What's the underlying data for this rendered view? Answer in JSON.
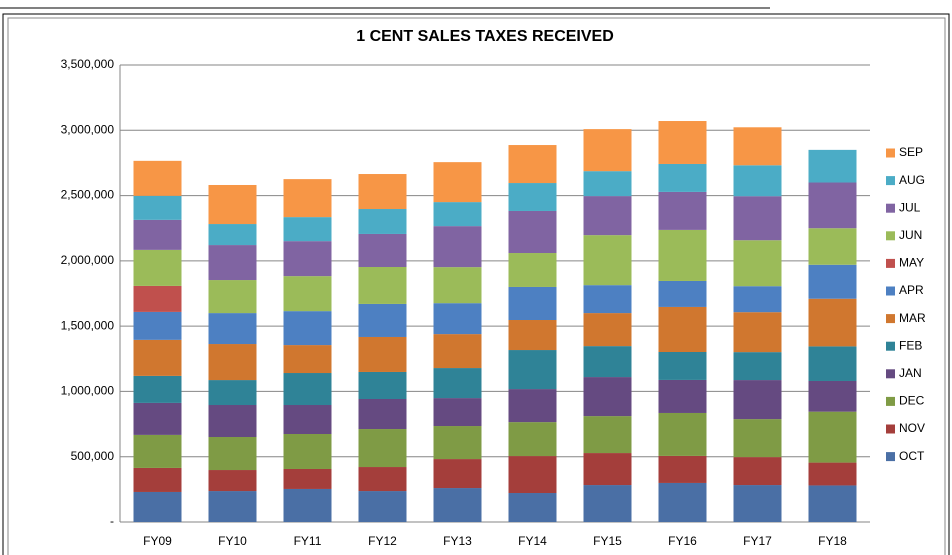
{
  "chart_data": {
    "type": "stacked_bar",
    "title": "1 CENT SALES TAXES RECEIVED",
    "categories": [
      "FY09",
      "FY10",
      "FY11",
      "FY12",
      "FY13",
      "FY14",
      "FY15",
      "FY16",
      "FY17",
      "FY18"
    ],
    "series": [
      {
        "name": "OCT",
        "color": "#4a6fa5",
        "values": [
          230000,
          237000,
          253000,
          237000,
          260000,
          222000,
          283000,
          299000,
          283000,
          280000
        ]
      },
      {
        "name": "NOV",
        "color": "#a43e3b",
        "values": [
          184000,
          161000,
          153000,
          184000,
          222000,
          283000,
          245000,
          207000,
          214000,
          175000
        ]
      },
      {
        "name": "DEC",
        "color": "#7f9b45",
        "values": [
          253000,
          253000,
          268000,
          291000,
          253000,
          260000,
          283000,
          329000,
          291000,
          390000
        ]
      },
      {
        "name": "JAN",
        "color": "#654a81",
        "values": [
          245000,
          245000,
          222000,
          230000,
          214000,
          253000,
          299000,
          253000,
          299000,
          235000
        ]
      },
      {
        "name": "FEB",
        "color": "#2f8397",
        "values": [
          207000,
          191000,
          245000,
          207000,
          230000,
          299000,
          237000,
          214000,
          214000,
          265000
        ]
      },
      {
        "name": "MAR",
        "color": "#d0772f",
        "values": [
          276000,
          276000,
          214000,
          268000,
          260000,
          230000,
          253000,
          345000,
          306000,
          365000
        ]
      },
      {
        "name": "APR",
        "color": "#4d80c2",
        "values": [
          214000,
          237000,
          260000,
          253000,
          237000,
          253000,
          214000,
          199000,
          199000,
          260000
        ]
      },
      {
        "name": "MAY",
        "color": "#c0504d",
        "values": [
          199000,
          null,
          null,
          null,
          null,
          null,
          null,
          null,
          null,
          null
        ]
      },
      {
        "name": "JUN",
        "color": "#9bbb59",
        "values": [
          276000,
          253000,
          268000,
          283000,
          276000,
          260000,
          383000,
          391000,
          352000,
          280000
        ]
      },
      {
        "name": "JUL",
        "color": "#8064a2",
        "values": [
          230000,
          268000,
          268000,
          253000,
          314000,
          322000,
          299000,
          291000,
          337000,
          350000
        ]
      },
      {
        "name": "AUG",
        "color": "#4bacc6",
        "values": [
          184000,
          161000,
          184000,
          191000,
          184000,
          214000,
          191000,
          214000,
          237000,
          250000
        ]
      },
      {
        "name": "SEP",
        "color": "#f79646",
        "values": [
          268000,
          299000,
          291000,
          268000,
          306000,
          291000,
          322000,
          329000,
          291000,
          null
        ]
      }
    ],
    "ylim": [
      0,
      3500000
    ],
    "yticks": [
      {
        "value": 0,
        "label": "-"
      },
      {
        "value": 500000,
        "label": "500,000"
      },
      {
        "value": 1000000,
        "label": "1,000,000"
      },
      {
        "value": 1500000,
        "label": "1,500,000"
      },
      {
        "value": 2000000,
        "label": "2,000,000"
      },
      {
        "value": 2500000,
        "label": "2,500,000"
      },
      {
        "value": 3000000,
        "label": "3,000,000"
      },
      {
        "value": 3500000,
        "label": "3,500,000"
      }
    ],
    "grid": true,
    "legend": "right"
  }
}
